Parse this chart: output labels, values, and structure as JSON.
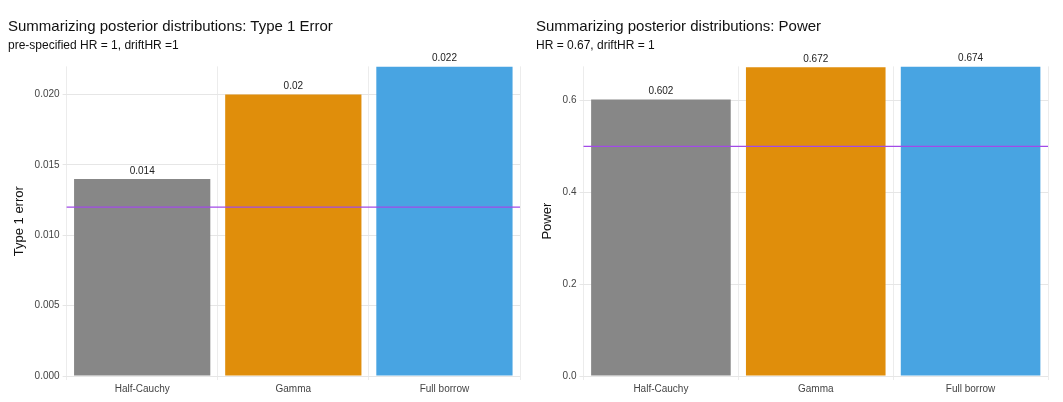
{
  "chart_data": [
    {
      "type": "bar",
      "title": "Summarizing posterior distributions: Type 1 Error",
      "subtitle": "pre-specified HR = 1, driftHR =1",
      "ylabel": "Type 1 error",
      "categories": [
        "Half-Cauchy",
        "Gamma",
        "Full borrow"
      ],
      "values": [
        0.014,
        0.02,
        0.022
      ],
      "colors": [
        "#878787",
        "#e08e0b",
        "#48a4e2"
      ],
      "ylim": [
        0,
        0.022
      ],
      "yticks": [
        {
          "value": 0,
          "label": "0.000"
        },
        0.005,
        {
          "value": 0.01,
          "label": "0.010"
        },
        0.015,
        {
          "value": 0.02,
          "label": "0.020"
        }
      ],
      "ref_lines": [
        {
          "axis": "y",
          "value": 0.012,
          "color": "#a24ae8"
        }
      ],
      "data_labels": true,
      "grid": true,
      "legend": false
    },
    {
      "type": "bar",
      "title": "Summarizing posterior distributions: Power",
      "subtitle": "HR = 0.67, driftHR = 1",
      "ylabel": "Power",
      "categories": [
        "Half-Cauchy",
        "Gamma",
        "Full borrow"
      ],
      "values": [
        0.602,
        0.672,
        0.674
      ],
      "colors": [
        "#878787",
        "#e08e0b",
        "#48a4e2"
      ],
      "ylim": [
        0,
        0.674
      ],
      "yticks": [
        {
          "value": 0,
          "label": "0.0"
        },
        0.2,
        0.4,
        0.6
      ],
      "ref_lines": [
        {
          "axis": "y",
          "value": 0.5,
          "color": "#a24ae8"
        }
      ],
      "data_labels": true,
      "grid": true,
      "legend": false
    }
  ]
}
